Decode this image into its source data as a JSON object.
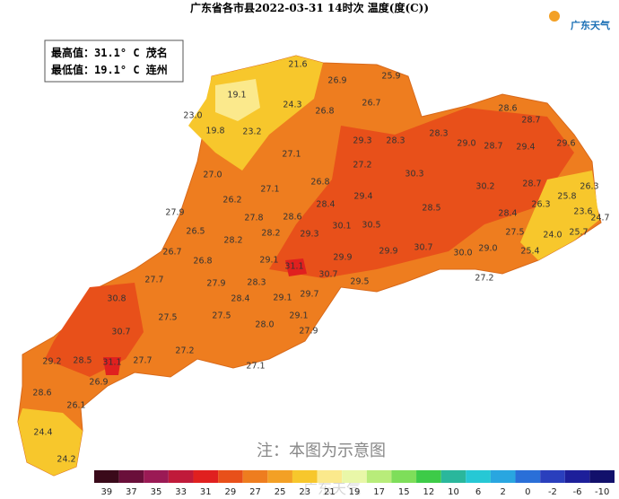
{
  "header": {
    "title": "广东省各市县2022-03-31 14时次 温度(度(C))",
    "logo": "广东天气"
  },
  "summary": [
    "最高值：31.1° C 茂名",
    "最低值：19.1° C 连州"
  ],
  "stations": [
    "21.6",
    "26.9",
    "25.9",
    "19.1",
    "24.3",
    "26.8",
    "26.7",
    "23.0",
    "19.8",
    "23.2",
    "28.6",
    "28.7",
    "28.3",
    "29.3",
    "28.3",
    "29.0",
    "28.7",
    "29.4",
    "29.6",
    "27.1",
    "27.2",
    "27.0",
    "30.3",
    "26.8",
    "30.2",
    "28.7",
    "26.3",
    "27.1",
    "29.4",
    "25.8",
    "26.2",
    "28.4",
    "26.3",
    "23.6",
    "27.9",
    "27.8",
    "28.6",
    "28.5",
    "28.4",
    "24.7",
    "26.5",
    "28.2",
    "29.3",
    "30.1",
    "30.5",
    "27.5",
    "24.0",
    "25.7",
    "28.2",
    "26.7",
    "30.7",
    "30.0",
    "29.0",
    "25.4",
    "26.8",
    "29.1",
    "31.1",
    "29.9",
    "29.9",
    "30.7",
    "27.7",
    "27.2",
    "27.9",
    "28.3",
    "29.5",
    "30.8",
    "28.4",
    "29.1",
    "29.7",
    "27.5",
    "27.5",
    "29.1",
    "28.0",
    "30.7",
    "27.9",
    "27.2",
    "29.2",
    "28.5",
    "31.1",
    "27.7",
    "27.1",
    "26.9",
    "28.6",
    "26.1",
    "24.4",
    "24.2"
  ],
  "note": "注：本图为示意图",
  "watermark": "广东天气",
  "legend": [
    {
      "label": "39",
      "color": "#3a0a1a"
    },
    {
      "label": "37",
      "color": "#6a0f3a"
    },
    {
      "label": "35",
      "color": "#9b1a55"
    },
    {
      "label": "33",
      "color": "#c01a3a"
    },
    {
      "label": "31",
      "color": "#e0201f"
    },
    {
      "label": "29",
      "color": "#e8501a"
    },
    {
      "label": "27",
      "color": "#ee7d1f"
    },
    {
      "label": "25",
      "color": "#f3a025"
    },
    {
      "label": "23",
      "color": "#f7c72c"
    },
    {
      "label": "21",
      "color": "#fbe98c"
    },
    {
      "label": "19",
      "color": "#e9f7a8"
    },
    {
      "label": "17",
      "color": "#b8ec7a"
    },
    {
      "label": "15",
      "color": "#7ede5a"
    },
    {
      "label": "12",
      "color": "#3dcb48"
    },
    {
      "label": "10",
      "color": "#2ab79c"
    },
    {
      "label": "6",
      "color": "#26c8d5"
    },
    {
      "label": "2",
      "color": "#29a6e0"
    },
    {
      "label": "0",
      "color": "#2a6fd8"
    },
    {
      "label": "-2",
      "color": "#2a3fbd"
    },
    {
      "label": "-6",
      "color": "#1d1f9a"
    },
    {
      "label": "-10",
      "color": "#12106b"
    }
  ]
}
